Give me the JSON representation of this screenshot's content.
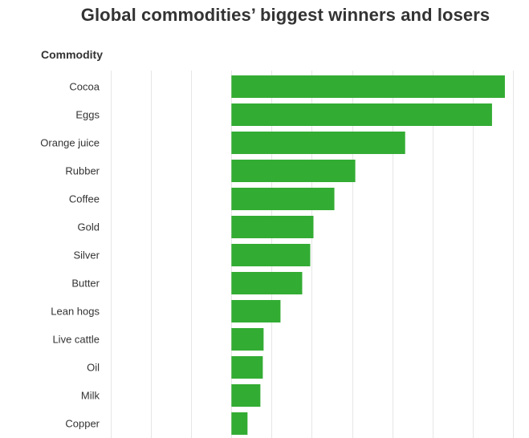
{
  "chart_data": {
    "type": "bar",
    "orientation": "horizontal",
    "title": "Global commodities’ biggest winners and losers",
    "category_header": "Commodity",
    "categories": [
      "Cocoa",
      "Eggs",
      "Orange juice",
      "Rubber",
      "Coffee",
      "Gold",
      "Silver",
      "Butter",
      "Lean hogs",
      "Live cattle",
      "Oil",
      "Milk",
      "Copper"
    ],
    "values": [
      170,
      162,
      108,
      77,
      64,
      51,
      49,
      44,
      30.5,
      20,
      19.5,
      18,
      10
    ],
    "xlim": [
      -77,
      180
    ],
    "grid": true,
    "bar_color": "#33ac33"
  }
}
